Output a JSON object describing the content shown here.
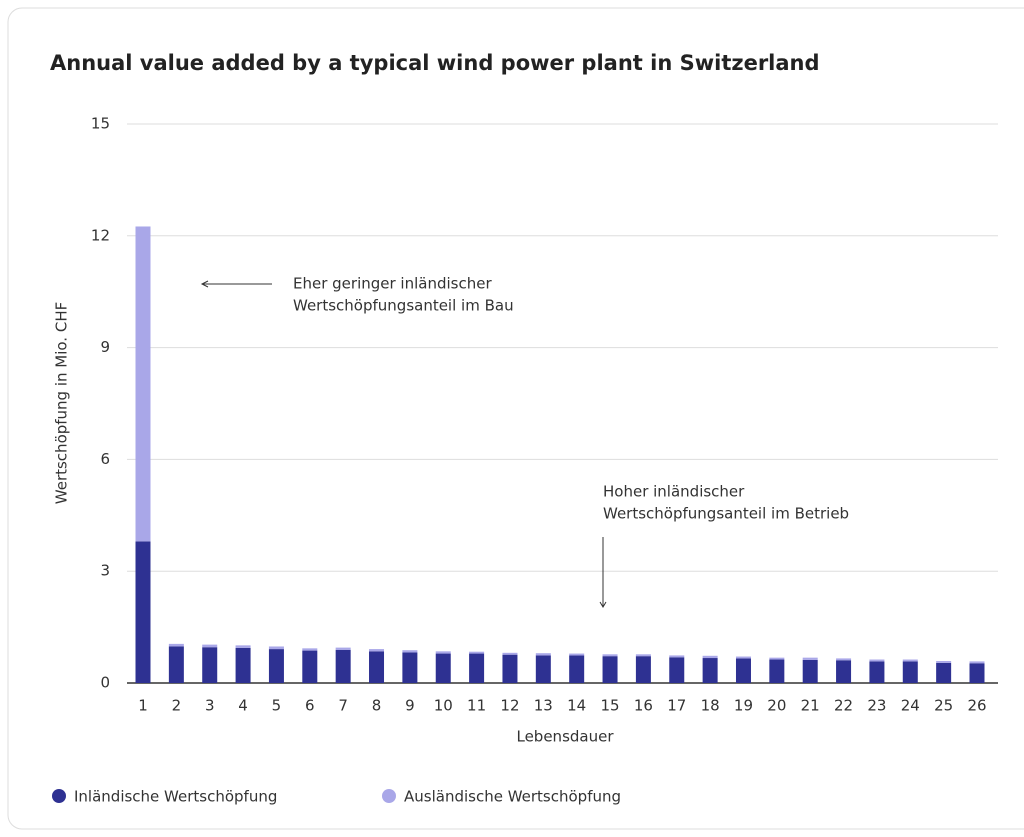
{
  "chart_data": {
    "type": "stacked_bar",
    "title": "Annual value added by a typical wind power plant in Switzerland",
    "x_label": "Lebensdauer",
    "y_label": "Wertschöpfung in Mio. CHF",
    "categories": [
      "1",
      "2",
      "3",
      "4",
      "5",
      "6",
      "7",
      "8",
      "9",
      "10",
      "11",
      "12",
      "13",
      "14",
      "15",
      "16",
      "17",
      "18",
      "19",
      "20",
      "21",
      "22",
      "23",
      "24",
      "25",
      "26"
    ],
    "series": [
      {
        "name": "Inländische Wertschöpfung",
        "color": "#2e3192",
        "values": [
          3.8,
          0.98,
          0.96,
          0.94,
          0.91,
          0.87,
          0.89,
          0.85,
          0.82,
          0.79,
          0.79,
          0.76,
          0.74,
          0.74,
          0.72,
          0.72,
          0.69,
          0.67,
          0.66,
          0.63,
          0.62,
          0.61,
          0.58,
          0.58,
          0.54,
          0.53
        ]
      },
      {
        "name": "Ausländische Wertschöpfung",
        "color": "#a9a7e8",
        "values": [
          8.45,
          0.07,
          0.07,
          0.07,
          0.07,
          0.06,
          0.06,
          0.06,
          0.06,
          0.06,
          0.05,
          0.05,
          0.06,
          0.05,
          0.05,
          0.05,
          0.05,
          0.06,
          0.05,
          0.05,
          0.06,
          0.05,
          0.05,
          0.05,
          0.05,
          0.05
        ]
      }
    ],
    "ylim": [
      0,
      15
    ],
    "yticks": [
      0,
      3,
      6,
      9,
      12,
      15
    ],
    "grid": true,
    "annotations": [
      {
        "lines": [
          "Eher geringer inländischer",
          "Wertschöpfungsanteil im Bau"
        ],
        "arrow": "left"
      },
      {
        "lines": [
          "Hoher inländischer",
          "Wertschöpfungsanteil im Betrieb"
        ],
        "arrow": "down"
      }
    ]
  }
}
